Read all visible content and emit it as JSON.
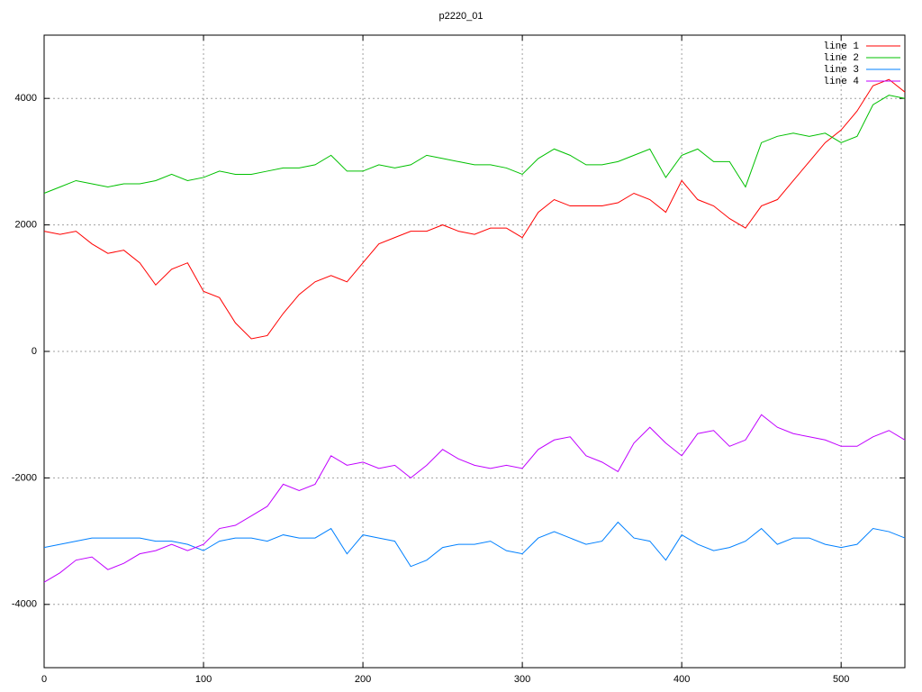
{
  "chart_data": {
    "type": "line",
    "title": "p2220_01",
    "x": [
      0,
      10,
      20,
      30,
      40,
      50,
      60,
      70,
      80,
      90,
      100,
      110,
      120,
      130,
      140,
      150,
      160,
      170,
      180,
      190,
      200,
      210,
      220,
      230,
      240,
      250,
      260,
      270,
      280,
      290,
      300,
      310,
      320,
      330,
      340,
      350,
      360,
      370,
      380,
      390,
      400,
      410,
      420,
      430,
      440,
      450,
      460,
      470,
      480,
      490,
      500,
      510,
      520,
      530,
      540
    ],
    "series": [
      {
        "name": "line 1",
        "color": "#ff0000",
        "values": [
          1900,
          1850,
          1900,
          1700,
          1550,
          1600,
          1400,
          1050,
          1300,
          1400,
          950,
          850,
          450,
          200,
          250,
          600,
          900,
          1100,
          1200,
          1100,
          1400,
          1700,
          1800,
          1900,
          1900,
          2000,
          1900,
          1850,
          1950,
          1950,
          1800,
          2200,
          2400,
          2300,
          2300,
          2300,
          2350,
          2500,
          2400,
          2200,
          2700,
          2400,
          2300,
          2100,
          1950,
          2300,
          2400,
          2700,
          3000,
          3300,
          3500,
          3800,
          4200,
          4300,
          4100
        ]
      },
      {
        "name": "line 2",
        "color": "#00c000",
        "values": [
          2500,
          2600,
          2700,
          2650,
          2600,
          2650,
          2650,
          2700,
          2800,
          2700,
          2750,
          2850,
          2800,
          2800,
          2850,
          2900,
          2900,
          2950,
          3100,
          2850,
          2850,
          2950,
          2900,
          2950,
          3100,
          3050,
          3000,
          2950,
          2950,
          2900,
          2800,
          3050,
          3200,
          3100,
          2950,
          2950,
          3000,
          3100,
          3200,
          2750,
          3100,
          3200,
          3000,
          3000,
          2600,
          3300,
          3400,
          3450,
          3400,
          3450,
          3300,
          3400,
          3900,
          4050,
          4000
        ]
      },
      {
        "name": "line 3",
        "color": "#0080ff",
        "values": [
          -3100,
          -3050,
          -3000,
          -2950,
          -2950,
          -2950,
          -2950,
          -3000,
          -3000,
          -3050,
          -3150,
          -3000,
          -2950,
          -2950,
          -3000,
          -2900,
          -2950,
          -2950,
          -2800,
          -3200,
          -2900,
          -2950,
          -3000,
          -3400,
          -3300,
          -3100,
          -3050,
          -3050,
          -3000,
          -3150,
          -3200,
          -2950,
          -2850,
          -2950,
          -3050,
          -3000,
          -2700,
          -2950,
          -3000,
          -3300,
          -2900,
          -3050,
          -3150,
          -3100,
          -3000,
          -2800,
          -3050,
          -2950,
          -2950,
          -3050,
          -3100,
          -3050,
          -2800,
          -2850,
          -2950
        ]
      },
      {
        "name": "line 4",
        "color": "#c000ff",
        "values": [
          -3650,
          -3500,
          -3300,
          -3250,
          -3450,
          -3350,
          -3200,
          -3150,
          -3050,
          -3150,
          -3050,
          -2800,
          -2750,
          -2600,
          -2450,
          -2100,
          -2200,
          -2100,
          -1650,
          -1800,
          -1750,
          -1850,
          -1800,
          -2000,
          -1800,
          -1550,
          -1700,
          -1800,
          -1850,
          -1800,
          -1850,
          -1550,
          -1400,
          -1350,
          -1650,
          -1750,
          -1900,
          -1450,
          -1200,
          -1450,
          -1650,
          -1300,
          -1250,
          -1500,
          -1400,
          -1000,
          -1200,
          -1300,
          -1350,
          -1400,
          -1500,
          -1500,
          -1350,
          -1250,
          -1400
        ]
      }
    ],
    "xlim": [
      0,
      540
    ],
    "xticks": [
      0,
      100,
      200,
      300,
      400,
      500
    ],
    "ylim": [
      -5000,
      5000
    ],
    "yticks": [
      -4000,
      -2000,
      0,
      2000,
      4000
    ],
    "grid": true,
    "legend": "top-right"
  }
}
